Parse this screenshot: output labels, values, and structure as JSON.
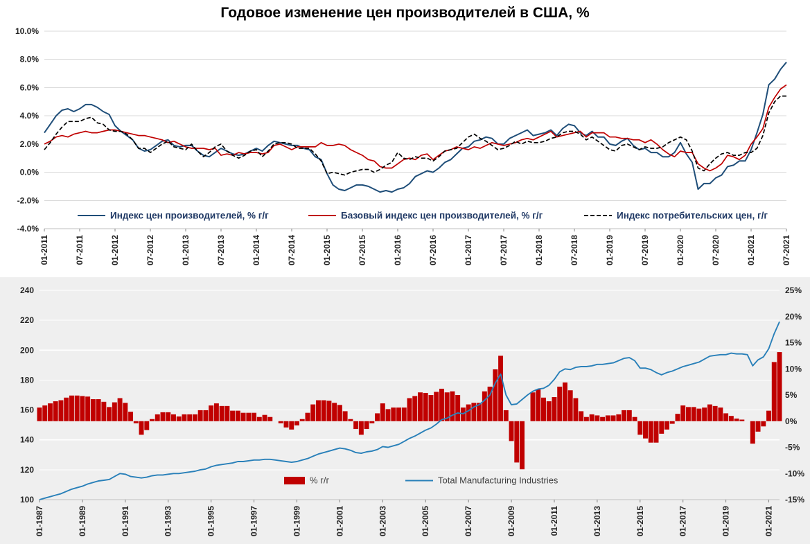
{
  "colors": {
    "ppi_line": "#1f4e79",
    "core_ppi_line": "#c00000",
    "cpi_line": "#000000",
    "bars": "#c00000",
    "mfg_line": "#2980b9",
    "top_grid": "#d9d9d9",
    "bottom_grid": "#ffffff",
    "bottom_bg": "#efefef",
    "axis_line": "#bfbfbf",
    "tick_mark": "#808080"
  },
  "chart_data": [
    {
      "type": "line",
      "title": "Годовое изменение цен производителей в США, %",
      "ylim": [
        -4,
        10
      ],
      "y_ticks": [
        10,
        8,
        6,
        4,
        2,
        0,
        -2,
        -4
      ],
      "y_tick_labels": [
        "10.0%",
        "8.0%",
        "6.0%",
        "4.0%",
        "2.0%",
        "0.0%",
        "-2.0%",
        "-4.0%"
      ],
      "x_tick_step": 6,
      "x_tick_labels": [
        "01-2011",
        "07-2011",
        "01-2012",
        "07-2012",
        "01-2013",
        "07-2013",
        "01-2014",
        "07-2014",
        "01-2015",
        "07-2015",
        "01-2016",
        "07-2016",
        "01-2017",
        "07-2017",
        "01-2018",
        "07-2018",
        "01-2019",
        "07-2019",
        "01-2020",
        "07-2020",
        "01-2021",
        "07-2021"
      ],
      "grid": true,
      "legend_position": "bottom-inside",
      "series": [
        {
          "id": "ppi",
          "name": "Индекс цен производителей, % г/г",
          "color": "#1f4e79",
          "dash": false,
          "values": [
            2.8,
            3.4,
            4.0,
            4.4,
            4.5,
            4.3,
            4.5,
            4.8,
            4.8,
            4.6,
            4.3,
            4.1,
            3.3,
            2.9,
            2.6,
            2.3,
            1.7,
            1.5,
            1.6,
            1.9,
            2.2,
            2.3,
            1.9,
            1.8,
            1.9,
            1.9,
            1.5,
            1.2,
            1.1,
            1.4,
            1.7,
            1.5,
            1.3,
            1.2,
            1.3,
            1.5,
            1.7,
            1.5,
            1.9,
            2.2,
            2.1,
            2.0,
            1.9,
            1.9,
            1.7,
            1.6,
            1.1,
            0.9,
            -0.1,
            -0.9,
            -1.2,
            -1.3,
            -1.1,
            -0.9,
            -0.9,
            -1.0,
            -1.2,
            -1.4,
            -1.3,
            -1.4,
            -1.2,
            -1.1,
            -0.8,
            -0.3,
            -0.1,
            0.1,
            0.0,
            0.3,
            0.7,
            0.9,
            1.3,
            1.7,
            1.8,
            2.2,
            2.3,
            2.5,
            2.4,
            2.0,
            2.0,
            2.4,
            2.6,
            2.8,
            3.0,
            2.6,
            2.7,
            2.8,
            3.0,
            2.6,
            3.1,
            3.4,
            3.3,
            2.8,
            2.6,
            2.9,
            2.5,
            2.5,
            2.0,
            1.9,
            2.2,
            2.4,
            1.9,
            1.6,
            1.7,
            1.4,
            1.4,
            1.1,
            1.1,
            1.4,
            2.1,
            1.3,
            0.7,
            -1.2,
            -0.8,
            -0.8,
            -0.4,
            -0.2,
            0.4,
            0.5,
            0.8,
            0.8,
            1.6,
            2.8,
            4.1,
            6.2,
            6.6,
            7.3,
            7.8
          ]
        },
        {
          "id": "core_ppi",
          "name": "Базовый индекс цен производителей, % г/г",
          "color": "#c00000",
          "dash": false,
          "values": [
            2.0,
            2.2,
            2.5,
            2.6,
            2.5,
            2.7,
            2.8,
            2.9,
            2.8,
            2.8,
            2.9,
            3.0,
            3.0,
            2.9,
            2.8,
            2.7,
            2.6,
            2.6,
            2.5,
            2.4,
            2.3,
            2.1,
            2.2,
            2.0,
            1.8,
            1.7,
            1.7,
            1.7,
            1.6,
            1.7,
            1.2,
            1.3,
            1.2,
            1.4,
            1.3,
            1.4,
            1.4,
            1.3,
            1.4,
            1.9,
            2.0,
            1.8,
            1.6,
            1.8,
            1.8,
            1.8,
            1.8,
            2.1,
            1.9,
            1.9,
            2.0,
            1.9,
            1.6,
            1.4,
            1.2,
            0.9,
            0.8,
            0.4,
            0.3,
            0.3,
            0.6,
            0.9,
            1.0,
            0.9,
            1.2,
            1.3,
            0.9,
            1.2,
            1.5,
            1.6,
            1.8,
            1.7,
            1.6,
            1.8,
            1.7,
            1.9,
            2.1,
            2.0,
            1.9,
            2.0,
            2.1,
            2.3,
            2.4,
            2.3,
            2.5,
            2.7,
            2.9,
            2.5,
            2.6,
            2.7,
            2.8,
            2.9,
            2.5,
            2.8,
            2.8,
            2.8,
            2.5,
            2.5,
            2.4,
            2.4,
            2.3,
            2.3,
            2.1,
            2.3,
            2.0,
            1.6,
            1.3,
            1.1,
            1.5,
            1.4,
            1.4,
            0.6,
            0.3,
            0.1,
            0.3,
            0.6,
            1.2,
            1.1,
            0.9,
            1.2,
            2.0,
            2.5,
            3.1,
            4.6,
            5.3,
            5.9,
            6.2
          ]
        },
        {
          "id": "cpi",
          "name": "Индекс потребительских цен, г/г",
          "color": "#000000",
          "dash": true,
          "values": [
            1.6,
            2.1,
            2.7,
            3.2,
            3.6,
            3.6,
            3.6,
            3.8,
            3.9,
            3.5,
            3.4,
            3.0,
            2.9,
            2.9,
            2.7,
            2.3,
            1.7,
            1.7,
            1.4,
            1.7,
            2.0,
            2.2,
            1.8,
            1.7,
            1.6,
            2.0,
            1.5,
            1.1,
            1.4,
            1.8,
            2.0,
            1.5,
            1.2,
            1.0,
            1.2,
            1.5,
            1.6,
            1.1,
            1.5,
            2.0,
            2.1,
            2.1,
            2.0,
            1.7,
            1.7,
            1.7,
            1.3,
            0.8,
            -0.1,
            0.0,
            -0.1,
            -0.2,
            0.0,
            0.1,
            0.2,
            0.2,
            0.0,
            0.2,
            0.5,
            0.7,
            1.4,
            1.0,
            0.9,
            1.1,
            1.0,
            1.0,
            0.8,
            1.1,
            1.5,
            1.6,
            1.7,
            2.1,
            2.5,
            2.7,
            2.4,
            2.2,
            1.9,
            1.6,
            1.7,
            1.9,
            2.2,
            2.0,
            2.2,
            2.1,
            2.1,
            2.2,
            2.4,
            2.5,
            2.8,
            2.9,
            2.9,
            2.7,
            2.3,
            2.5,
            2.2,
            1.9,
            1.6,
            1.5,
            1.9,
            2.0,
            1.8,
            1.6,
            1.8,
            1.7,
            1.7,
            1.8,
            2.1,
            2.3,
            2.5,
            2.3,
            1.5,
            0.3,
            0.1,
            0.6,
            1.0,
            1.3,
            1.4,
            1.2,
            1.2,
            1.4,
            1.4,
            1.7,
            2.6,
            4.2,
            5.0,
            5.4,
            5.4
          ]
        }
      ]
    },
    {
      "type": "bar+line",
      "left_ylim": [
        100,
        240
      ],
      "left_ticks": [
        240,
        220,
        200,
        180,
        160,
        140,
        120,
        100
      ],
      "left_tick_labels": [
        "240",
        "220",
        "200",
        "180",
        "160",
        "140",
        "120",
        "100"
      ],
      "right_ylim": [
        -15,
        25
      ],
      "right_ticks": [
        25,
        20,
        15,
        10,
        5,
        0,
        -5,
        -10,
        -15
      ],
      "right_tick_labels": [
        "25%",
        "20%",
        "15%",
        "10%",
        "5%",
        "0%",
        "-5%",
        "-10%",
        "-15%"
      ],
      "x_tick_step": 8,
      "x_tick_labels": [
        "01-1987",
        "01-1989",
        "01-1991",
        "01-1993",
        "01-1995",
        "01-1997",
        "01-1999",
        "01-2001",
        "01-2003",
        "01-2005",
        "01-2007",
        "01-2009",
        "01-2011",
        "01-2013",
        "01-2015",
        "01-2017",
        "01-2019",
        "01-2021"
      ],
      "grid": true,
      "legend_position": "bottom-inside",
      "bar_series": {
        "id": "yoy",
        "name": "% г/г",
        "axis": "right",
        "color": "#c00000",
        "values": [
          2.6,
          3.0,
          3.4,
          3.8,
          4.0,
          4.5,
          4.9,
          4.9,
          4.8,
          4.7,
          4.2,
          4.2,
          3.7,
          2.7,
          3.6,
          4.4,
          3.5,
          1.8,
          -0.4,
          -2.6,
          -1.7,
          0.4,
          1.3,
          1.7,
          1.7,
          1.3,
          0.9,
          1.3,
          1.3,
          1.3,
          2.1,
          2.1,
          3.0,
          3.4,
          2.9,
          2.9,
          2.0,
          2.0,
          1.6,
          1.6,
          1.6,
          0.8,
          1.2,
          0.8,
          0.0,
          -0.4,
          -1.2,
          -1.6,
          -0.8,
          0.4,
          1.6,
          3.2,
          4.0,
          4.0,
          3.9,
          3.5,
          3.1,
          1.9,
          0.4,
          -1.5,
          -2.6,
          -1.5,
          -0.4,
          1.5,
          3.4,
          2.3,
          2.6,
          2.6,
          2.6,
          4.4,
          4.8,
          5.5,
          5.4,
          5.0,
          5.6,
          6.2,
          5.5,
          5.7,
          5.0,
          2.6,
          3.2,
          3.5,
          3.5,
          5.7,
          6.6,
          9.9,
          12.5,
          2.1,
          -3.8,
          -7.9,
          -9.2,
          0.0,
          5.5,
          6.1,
          4.5,
          3.8,
          4.6,
          6.6,
          7.4,
          5.9,
          4.4,
          1.9,
          0.8,
          1.3,
          1.1,
          0.8,
          1.1,
          1.1,
          1.3,
          2.1,
          2.1,
          0.8,
          -2.6,
          -3.3,
          -4.1,
          -4.1,
          -2.4,
          -1.6,
          -0.5,
          1.4,
          3.0,
          2.7,
          2.7,
          2.4,
          2.6,
          3.2,
          2.9,
          2.6,
          1.5,
          1.0,
          0.5,
          0.3,
          0.0,
          -4.3,
          -2.0,
          -1.0,
          2.0,
          11.3,
          13.2
        ]
      },
      "line_series": {
        "id": "mfg_index",
        "name": "Total Manufacturing Industries",
        "axis": "left",
        "color": "#2980b9",
        "values": [
          100,
          101,
          102,
          103,
          104,
          105.5,
          107,
          108,
          109,
          110.5,
          111.5,
          112.5,
          113,
          113.5,
          115.5,
          117.5,
          117,
          115.5,
          115,
          114.5,
          115,
          116,
          116.5,
          116.5,
          117,
          117.5,
          117.5,
          118,
          118.5,
          119,
          120,
          120.5,
          122,
          123,
          123.5,
          124,
          124.5,
          125.5,
          125.5,
          126,
          126.5,
          126.5,
          127,
          127,
          126.5,
          126,
          125.5,
          125,
          125.5,
          126.5,
          127.5,
          129,
          130.5,
          131.5,
          132.5,
          133.5,
          134.5,
          134,
          133,
          131.5,
          131,
          132,
          132.5,
          133.5,
          135.5,
          135,
          136,
          137,
          139,
          141,
          142.5,
          144.5,
          146.5,
          148,
          150.5,
          153.5,
          154.5,
          156.5,
          158,
          157.5,
          159.5,
          162,
          163.5,
          166.5,
          170,
          178,
          184,
          170,
          163.5,
          164,
          167,
          170,
          172.5,
          174,
          174.5,
          176.5,
          180.5,
          185.5,
          187.5,
          187,
          188.5,
          189,
          189,
          189.5,
          190.5,
          190.5,
          191,
          191.5,
          193,
          194.5,
          195,
          193,
          188,
          188,
          187,
          185,
          183.5,
          185,
          186,
          187.5,
          189,
          190,
          191,
          192,
          194,
          196,
          196.5,
          197,
          197,
          198,
          197.5,
          197.5,
          197,
          189.5,
          193.5,
          195.5,
          201,
          211,
          219
        ]
      }
    }
  ]
}
